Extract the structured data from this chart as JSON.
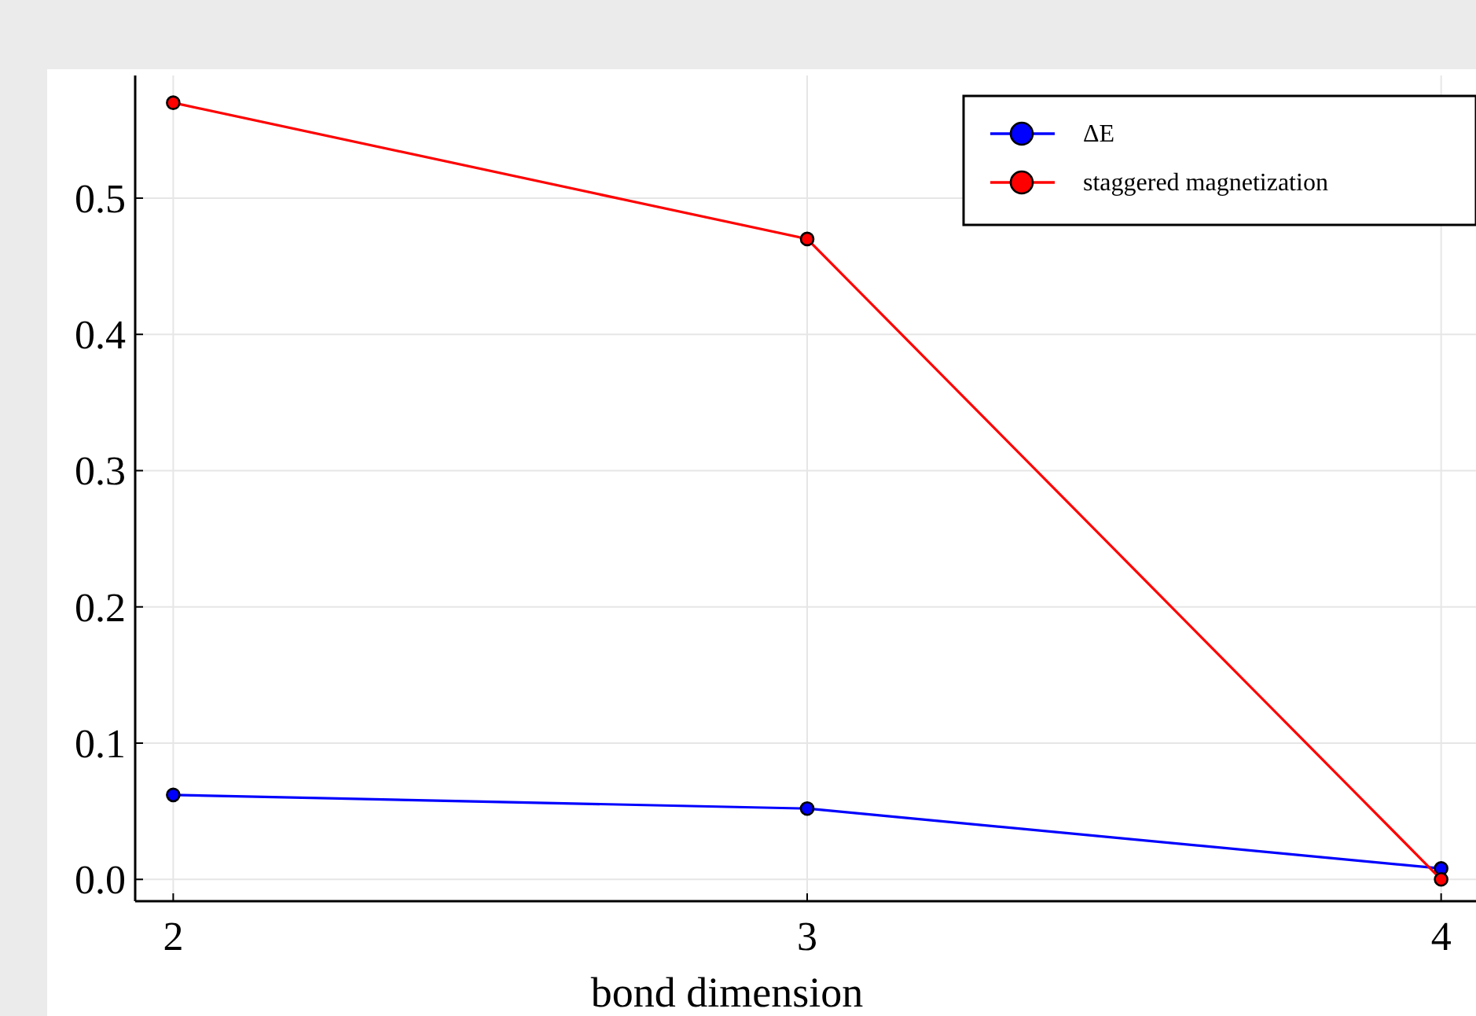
{
  "chart_data": {
    "type": "line",
    "xlabel": "bond dimension",
    "x": [
      2,
      3,
      4
    ],
    "series": [
      {
        "name": "ΔE",
        "color": "#0000ff",
        "values": [
          0.062,
          0.052,
          0.008
        ]
      },
      {
        "name": "staggered magnetization",
        "color": "#ff0000",
        "values": [
          0.57,
          0.47,
          0.0
        ]
      }
    ],
    "xlim": [
      1.94,
      4.055
    ],
    "xticks": [
      2,
      3,
      4
    ],
    "ylim": [
      -0.016,
      0.59
    ],
    "yticks": [
      {
        "value": 0,
        "label": "0.0"
      },
      {
        "value": 0.1,
        "label": "0.1"
      },
      {
        "value": 0.2,
        "label": "0.2"
      },
      {
        "value": 0.3,
        "label": "0.3"
      },
      {
        "value": 0.4,
        "label": "0.4"
      },
      {
        "value": 0.5,
        "label": "0.5"
      }
    ],
    "grid": true,
    "legend": "top right",
    "marker": "circle",
    "line_style": "solid"
  }
}
